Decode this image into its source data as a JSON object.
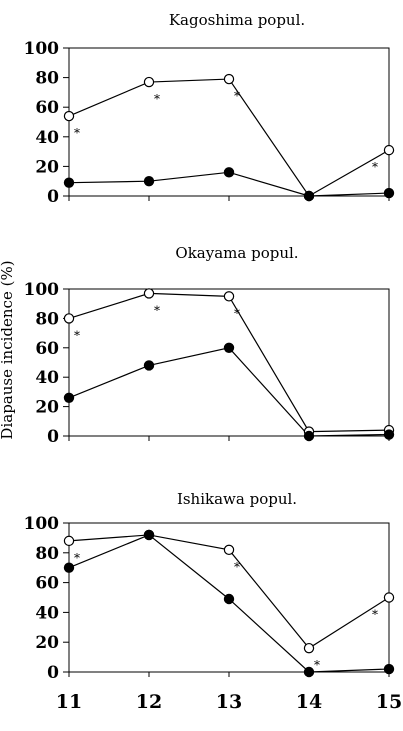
{
  "figure": {
    "ylabel": "Diapause incidence (%)",
    "x_ticks": [
      "11",
      "12",
      "13",
      "14",
      "15"
    ]
  },
  "chart_data": [
    {
      "type": "line",
      "title": "Kagoshima popul.",
      "ylabel": "Diapause incidence (%)",
      "x": [
        11,
        12,
        13,
        14,
        15
      ],
      "xlim": [
        11,
        15
      ],
      "ylim": [
        0,
        100
      ],
      "yticks": [
        "0",
        "20",
        "40",
        "60",
        "80",
        "100"
      ],
      "grid": false,
      "series": [
        {
          "marker": "open-circle",
          "values": [
            54,
            77,
            79,
            0,
            31
          ]
        },
        {
          "marker": "filled-circle",
          "values": [
            9,
            10,
            16,
            0,
            2
          ]
        }
      ],
      "significance": [
        {
          "x": 11,
          "label": "*"
        },
        {
          "x": 12,
          "label": "*"
        },
        {
          "x": 13,
          "label": "*"
        },
        {
          "x": 15,
          "label": "*"
        }
      ]
    },
    {
      "type": "line",
      "title": "Okayama popul.",
      "ylabel": "Diapause incidence (%)",
      "x": [
        11,
        12,
        13,
        14,
        15
      ],
      "xlim": [
        11,
        15
      ],
      "ylim": [
        0,
        100
      ],
      "yticks": [
        "0",
        "20",
        "40",
        "60",
        "80",
        "100"
      ],
      "grid": false,
      "series": [
        {
          "marker": "open-circle",
          "values": [
            80,
            97,
            95,
            3,
            4
          ]
        },
        {
          "marker": "filled-circle",
          "values": [
            26,
            48,
            60,
            0,
            1
          ]
        }
      ],
      "significance": [
        {
          "x": 11,
          "label": "*"
        },
        {
          "x": 12,
          "label": "*"
        },
        {
          "x": 13,
          "label": "*"
        }
      ]
    },
    {
      "type": "line",
      "title": "Ishikawa popul.",
      "ylabel": "Diapause incidence (%)",
      "x": [
        11,
        12,
        13,
        14,
        15
      ],
      "xlim": [
        11,
        15
      ],
      "ylim": [
        0,
        100
      ],
      "yticks": [
        "0",
        "20",
        "40",
        "60",
        "80",
        "100"
      ],
      "grid": false,
      "series": [
        {
          "marker": "open-circle",
          "values": [
            88,
            92,
            82,
            16,
            50
          ]
        },
        {
          "marker": "filled-circle",
          "values": [
            70,
            92,
            49,
            0,
            2
          ]
        }
      ],
      "significance": [
        {
          "x": 11,
          "label": "*"
        },
        {
          "x": 13,
          "label": "*"
        },
        {
          "x": 14,
          "label": "*"
        },
        {
          "x": 15,
          "label": "*"
        }
      ]
    }
  ]
}
